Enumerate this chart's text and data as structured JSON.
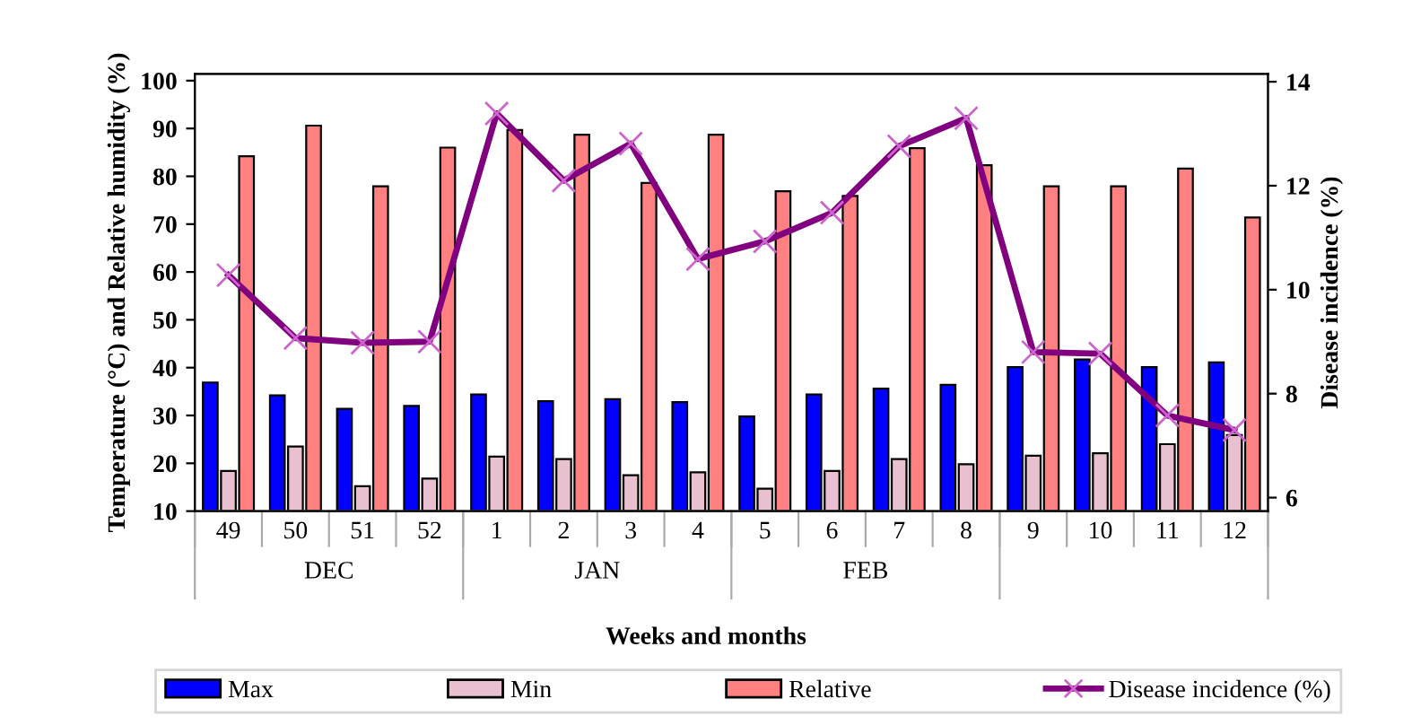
{
  "chart_data": {
    "type": "bar",
    "xlabel": "Weeks and months",
    "ylabel": "Temperature (°C) and Relative humidity (%)",
    "y2label": "Disease incidence (%)",
    "categories": [
      "49",
      "50",
      "51",
      "52",
      "1",
      "2",
      "3",
      "4",
      "5",
      "6",
      "7",
      "8",
      "9",
      "10",
      "11",
      "12"
    ],
    "annotations": [
      "DEC",
      "JAN",
      "FEB"
    ],
    "series": [
      {
        "name": "Max",
        "color": "#0000ff",
        "values": [
          36.9,
          34.2,
          31.4,
          32.0,
          34.4,
          33.0,
          33.4,
          32.8,
          29.8,
          34.4,
          35.6,
          36.4,
          40.1,
          41.7,
          40.1,
          41.1
        ]
      },
      {
        "name": "Min",
        "color": "#e8c0d0",
        "values": [
          18.4,
          23.5,
          15.2,
          16.8,
          21.4,
          20.9,
          17.5,
          18.1,
          14.7,
          18.4,
          20.9,
          19.8,
          21.6,
          22.1,
          24.0,
          25.9
        ]
      },
      {
        "name": "Relative",
        "color": "#ff8080",
        "values": [
          84.2,
          90.6,
          77.9,
          86.0,
          89.7,
          88.7,
          78.6,
          88.7,
          76.9,
          75.9,
          85.9,
          82.3,
          77.9,
          77.9,
          81.6,
          71.4
        ]
      },
      {
        "name": "Disease incidence (%)",
        "type": "line",
        "axis": "y2",
        "color": "#800080",
        "marker": "cross",
        "values": [
          10.28,
          9.07,
          8.98,
          9.0,
          13.39,
          12.1,
          12.81,
          10.59,
          10.93,
          11.48,
          12.76,
          13.3,
          8.8,
          8.77,
          7.58,
          7.3
        ]
      }
    ],
    "ylim": [
      10,
      101.4
    ],
    "yticks": [
      10,
      20,
      30,
      40,
      50,
      60,
      70,
      80,
      90,
      100
    ],
    "y2lim": [
      5.74,
      14.15
    ],
    "y2ticks": [
      6,
      8,
      10,
      12,
      14
    ],
    "grid": false,
    "legend": "bottom"
  }
}
